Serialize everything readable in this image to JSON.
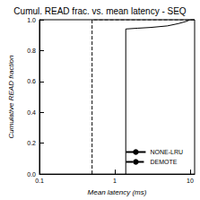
{
  "chart_data": {
    "type": "line",
    "title": "Cumul. READ frac. vs. mean latency - SEQ",
    "x_label": "Mean latency (ms)",
    "y_label": "Cumulative READ fraction",
    "log": "x",
    "grid": false,
    "legend": "lower right",
    "xlim": [
      0.1,
      11.5
    ],
    "xticks": [
      0.1,
      1,
      10
    ],
    "ylim": [
      0,
      1
    ],
    "yticks": [
      {
        "value": 0,
        "label": "0.0"
      },
      0.2,
      0.4,
      0.6,
      0.8,
      {
        "value": 1,
        "label": "1.0"
      }
    ],
    "series": [
      {
        "name": "NONE-LRU",
        "color": "#000000",
        "line_style": "solid",
        "x": [
          1.4,
          1.4,
          2,
          3,
          5,
          7,
          9,
          10,
          11.5
        ],
        "values": [
          0,
          0.94,
          0.945,
          0.95,
          0.96,
          0.975,
          0.99,
          1.0,
          1.0
        ]
      },
      {
        "name": "DEMOTE",
        "color": "#000000",
        "line_style": "dashed",
        "x": [
          0.5,
          0.5,
          11.5
        ],
        "values": [
          0,
          1.0,
          1.0
        ]
      }
    ]
  }
}
